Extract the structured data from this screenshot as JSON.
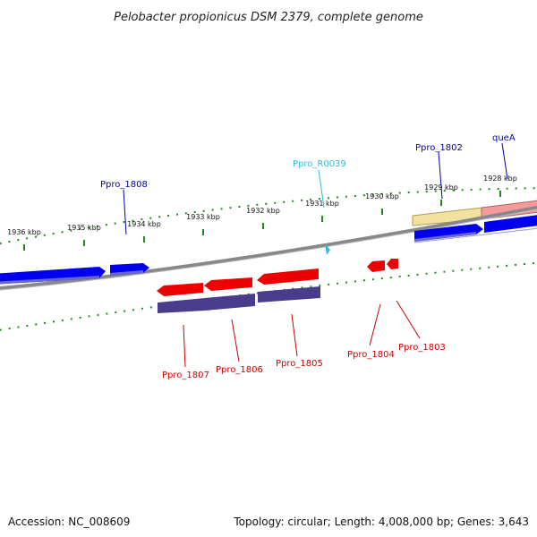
{
  "title": "Pelobacter propionicus DSM 2379, complete genome",
  "accession": "Accession: NC_008609",
  "summary": "Topology: circular; Length: 4,008,000 bp; Genes: 3,643",
  "colors": {
    "forward_cds": "#0000ee",
    "reverse_cds": "#ee0000",
    "reverse_feature": "#4a3c8c",
    "forward_label": "#0000aa",
    "reverse_label": "#cc0000",
    "rna": "#33bbdd",
    "tick": "#228822",
    "backbone": "#888888",
    "highlight_yellow": "#f2e2a0",
    "highlight_pink": "#f49a9a"
  },
  "ticks": [
    {
      "label": "1936 kbp",
      "kbp": 1936
    },
    {
      "label": "1935 kbp",
      "kbp": 1935
    },
    {
      "label": "1934 kbp",
      "kbp": 1934
    },
    {
      "label": "1933 kbp",
      "kbp": 1933
    },
    {
      "label": "1932 kbp",
      "kbp": 1932
    },
    {
      "label": "1931 kbp",
      "kbp": 1931
    },
    {
      "label": "1930 kbp",
      "kbp": 1930
    },
    {
      "label": "1929 kbp",
      "kbp": 1929
    },
    {
      "label": "1928 kbp",
      "kbp": 1928
    }
  ],
  "forward_labels": [
    {
      "name": "Ppro_1808",
      "type": "cds"
    },
    {
      "name": "Ppro_R0039",
      "type": "rna"
    },
    {
      "name": "Ppro_1802",
      "type": "cds"
    },
    {
      "name": "queA",
      "type": "cds"
    }
  ],
  "reverse_labels": [
    {
      "name": "Ppro_1807"
    },
    {
      "name": "Ppro_1806"
    },
    {
      "name": "Ppro_1805"
    },
    {
      "name": "Ppro_1804"
    },
    {
      "name": "Ppro_1803"
    }
  ]
}
